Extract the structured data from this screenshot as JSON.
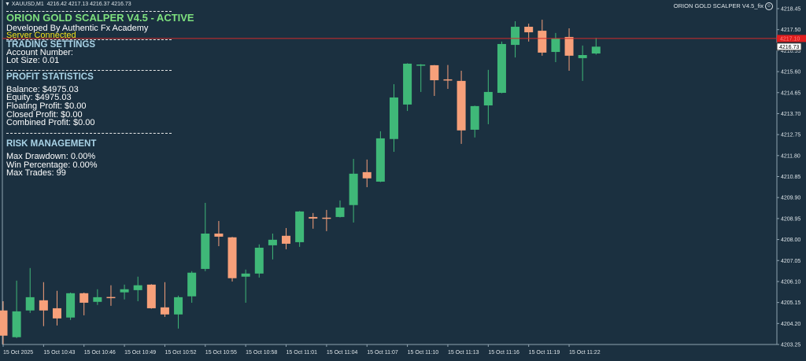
{
  "header": {
    "symbol": "XAUUSD,M1",
    "ohlc": "4216.42 4217.13 4216.37 4216.73"
  },
  "ea_label": {
    "name": "ORION GOLD SCALPER V4.5_fix",
    "icon": "smiley-face-icon"
  },
  "panel": {
    "title": "ORION GOLD SCALPER V4.5 - ACTIVE",
    "developer": "Developed By Authentic Fx Academy",
    "status": "Server Connected",
    "trading_settings": {
      "heading": "TRADING SETTINGS",
      "account": "Account Number:",
      "lot": "Lot Size: 0.01"
    },
    "profit_statistics": {
      "heading": "PROFIT STATISTICS",
      "balance": "Balance: $4975.03",
      "equity": "Equity: $4975.03",
      "floating": "Floating Profit: $0.00",
      "closed": "Closed Profit: $0.00",
      "combined": "Combined Profit: $0.00"
    },
    "risk_management": {
      "heading": "RISK MANAGEMENT",
      "drawdown": "Max Drawdown: 0.00%",
      "win": "Win Percentage: 0.00%",
      "trades": "Max Trades: 99"
    }
  },
  "colors": {
    "background": "#1b3040",
    "bull": "#3fb878",
    "bear": "#f7a07a",
    "ask_line": "#d42a2a",
    "axis": "#8fa3b0",
    "title": "#7ee07e",
    "status": "#f2e21a",
    "section": "#a9d3e6"
  },
  "chart_data": {
    "type": "candlestick",
    "ylim": [
      4203.25,
      4218.45
    ],
    "y_ticks": [
      "4218.45",
      "4217.50",
      "4216.55",
      "4215.60",
      "4214.65",
      "4213.70",
      "4212.75",
      "4211.80",
      "4210.85",
      "4209.90",
      "4208.95",
      "4208.00",
      "4207.05",
      "4206.10",
      "4205.15",
      "4204.20",
      "4203.25"
    ],
    "x_labels": [
      "15 Oct 2025",
      "15 Oct 10:43",
      "15 Oct 10:46",
      "15 Oct 10:49",
      "15 Oct 10:52",
      "15 Oct 10:55",
      "15 Oct 10:58",
      "15 Oct 11:01",
      "15 Oct 11:04",
      "15 Oct 11:07",
      "15 Oct 11:10",
      "15 Oct 11:13",
      "15 Oct 11:16",
      "15 Oct 11:19",
      "15 Oct 11:22"
    ],
    "x_label_every": 3,
    "ask_price": "4217.10",
    "bid_price": "4216.73",
    "candles": [
      [
        4204.79,
        4205.21,
        4203.26,
        4203.65
      ],
      [
        4203.58,
        4206.14,
        4203.54,
        4204.75
      ],
      [
        4204.79,
        4206.71,
        4204.68,
        4205.39
      ],
      [
        4205.25,
        4206.07,
        4204.08,
        4204.79
      ],
      [
        4204.89,
        4205.68,
        4204.11,
        4204.43
      ],
      [
        4204.47,
        4205.6,
        4204.36,
        4205.57
      ],
      [
        4205.57,
        4205.6,
        4204.57,
        4205.14
      ],
      [
        4205.18,
        4205.75,
        4205.04,
        4205.39
      ],
      [
        4205.4,
        4205.93,
        4205.0,
        4205.39
      ],
      [
        4205.61,
        4205.96,
        4205.29,
        4205.75
      ],
      [
        4205.71,
        4206.32,
        4205.21,
        4205.93
      ],
      [
        4205.96,
        4205.98,
        4204.87,
        4204.89
      ],
      [
        4204.93,
        4206.07,
        4204.5,
        4204.61
      ],
      [
        4204.61,
        4205.46,
        4203.97,
        4205.39
      ],
      [
        4205.43,
        4206.57,
        4205.14,
        4206.5
      ],
      [
        4206.67,
        4209.66,
        4206.57,
        4208.27
      ],
      [
        4208.27,
        4208.84,
        4207.7,
        4208.13
      ],
      [
        4208.1,
        4208.12,
        4206.1,
        4206.25
      ],
      [
        4206.32,
        4206.64,
        4205.14,
        4206.46
      ],
      [
        4206.46,
        4207.78,
        4206.28,
        4207.63
      ],
      [
        4207.74,
        4208.27,
        4207.1,
        4207.99
      ],
      [
        4208.17,
        4208.52,
        4207.56,
        4207.81
      ],
      [
        4207.88,
        4209.29,
        4207.67,
        4209.27
      ],
      [
        4209.02,
        4209.2,
        4208.49,
        4208.95
      ],
      [
        4208.99,
        4209.34,
        4208.38,
        4208.97
      ],
      [
        4209.02,
        4209.77,
        4209.0,
        4209.45
      ],
      [
        4209.56,
        4211.65,
        4208.77,
        4210.98
      ],
      [
        4211.05,
        4211.62,
        4210.37,
        4210.77
      ],
      [
        4210.62,
        4212.9,
        4210.6,
        4212.58
      ],
      [
        4212.55,
        4215.03,
        4211.97,
        4214.43
      ],
      [
        4214.11,
        4215.98,
        4213.82,
        4215.96
      ],
      [
        4215.89,
        4215.94,
        4214.68,
        4215.92
      ],
      [
        4215.89,
        4215.9,
        4214.5,
        4215.21
      ],
      [
        4215.25,
        4215.9,
        4214.82,
        4215.24
      ],
      [
        4215.18,
        4215.64,
        4212.33,
        4212.94
      ],
      [
        4212.97,
        4214.06,
        4212.62,
        4214.04
      ],
      [
        4214.07,
        4215.68,
        4213.22,
        4214.68
      ],
      [
        4214.64,
        4216.96,
        4214.62,
        4216.85
      ],
      [
        4216.81,
        4217.88,
        4216.24,
        4217.63
      ],
      [
        4217.63,
        4217.77,
        4216.96,
        4217.38
      ],
      [
        4217.45,
        4217.95,
        4216.32,
        4216.46
      ],
      [
        4216.49,
        4217.35,
        4216.03,
        4217.1
      ],
      [
        4217.17,
        4217.56,
        4215.64,
        4216.32
      ],
      [
        4216.21,
        4216.78,
        4215.18,
        4216.35
      ],
      [
        4216.42,
        4217.13,
        4216.37,
        4216.73
      ]
    ]
  }
}
